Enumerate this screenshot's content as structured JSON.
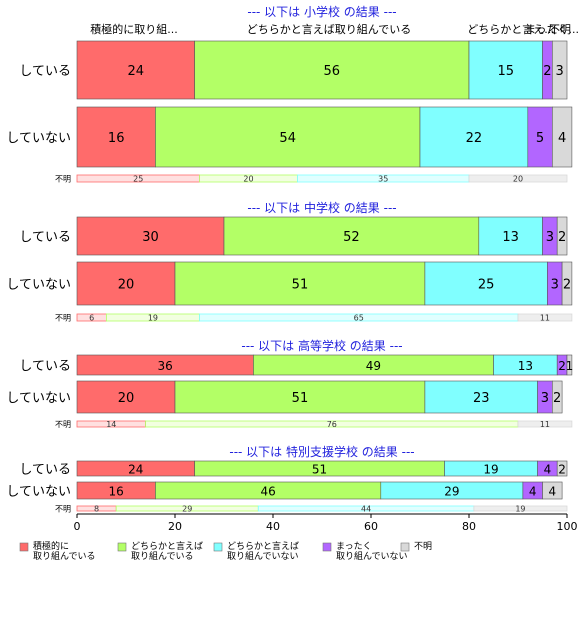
{
  "chart_data": {
    "type": "bar",
    "orientation": "horizontal",
    "stacked": true,
    "xlim": [
      0,
      100
    ],
    "x_ticks": [
      "0",
      "20",
      "40",
      "60",
      "80",
      "100"
    ],
    "grid": false,
    "legend_position": "bottom",
    "series": [
      {
        "name": "積極的に\n取り組んでいる",
        "color": "#ff6b6b"
      },
      {
        "name": "どちらかと言えば\n取り組んでいる",
        "color": "#b3ff66"
      },
      {
        "name": "どちらかと言えば\n取り組んでいない",
        "color": "#80ffff"
      },
      {
        "name": "まったく\n取り組んでいない",
        "color": "#b266ff"
      },
      {
        "name": "不明",
        "color": "#d9d9d9"
      }
    ],
    "top_labels": [
      "積極的に取り組...",
      "どちらかと言えば取り組んでいる",
      "どちらかと言え...",
      "まったく...",
      "不明"
    ],
    "groups": [
      {
        "title": "--- 以下は 小学校 の結果 ---",
        "rows": [
          {
            "label": "している",
            "values": [
              24,
              56,
              15,
              2,
              3
            ]
          },
          {
            "label": "していない",
            "values": [
              16,
              54,
              22,
              5,
              4
            ]
          }
        ],
        "unknown": {
          "label": "不明",
          "values": [
            25,
            20,
            35,
            0,
            20
          ]
        }
      },
      {
        "title": "--- 以下は 中学校 の結果 ---",
        "rows": [
          {
            "label": "している",
            "values": [
              30,
              52,
              13,
              3,
              2
            ]
          },
          {
            "label": "していない",
            "values": [
              20,
              51,
              25,
              3,
              2
            ]
          }
        ],
        "unknown": {
          "label": "不明",
          "values": [
            6,
            19,
            65,
            0,
            11
          ]
        }
      },
      {
        "title": "--- 以下は 高等学校 の結果 ---",
        "rows": [
          {
            "label": "している",
            "values": [
              36,
              49,
              13,
              2,
              1
            ]
          },
          {
            "label": "していない",
            "values": [
              20,
              51,
              23,
              3,
              2
            ]
          }
        ],
        "unknown": {
          "label": "不明",
          "values": [
            14,
            76,
            0,
            0,
            11
          ]
        }
      },
      {
        "title": "--- 以下は 特別支援学校 の結果 ---",
        "rows": [
          {
            "label": "している",
            "values": [
              24,
              51,
              19,
              4,
              2
            ]
          },
          {
            "label": "していない",
            "values": [
              16,
              46,
              29,
              4,
              4
            ]
          }
        ],
        "unknown": {
          "label": "不明",
          "values": [
            8,
            29,
            44,
            0,
            19
          ]
        }
      }
    ]
  }
}
